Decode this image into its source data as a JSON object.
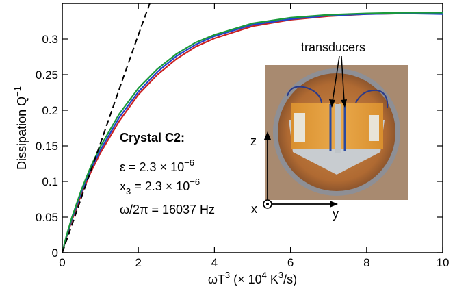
{
  "chart_data": {
    "type": "line",
    "xlabel_base": "ωT",
    "xlabel_sup": "3",
    "xlabel_unit_pre": " (× 10",
    "xlabel_unit_sup1": "4",
    "xlabel_unit_mid": " K",
    "xlabel_unit_sup2": "3",
    "xlabel_unit_post": "/s)",
    "ylabel_base": "Dissipation Q",
    "ylabel_sup": "−1",
    "xlim": [
      0,
      10
    ],
    "ylim": [
      0,
      0.35
    ],
    "grid": false,
    "x_ticks": [
      "0",
      "2",
      "4",
      "6",
      "8",
      "10"
    ],
    "y_ticks": [
      "0",
      "0.05",
      "0.1",
      "0.15",
      "0.2",
      "0.25",
      "0.3"
    ],
    "series": [
      {
        "color": "#cc2222",
        "style": "solid",
        "x": [
          0,
          0.1,
          0.25,
          0.5,
          0.75,
          1,
          1.5,
          2,
          2.5,
          3,
          3.5,
          4,
          5,
          6,
          7,
          8,
          9,
          10
        ],
        "y": [
          0,
          0.02,
          0.045,
          0.082,
          0.113,
          0.14,
          0.185,
          0.222,
          0.25,
          0.272,
          0.289,
          0.301,
          0.318,
          0.327,
          0.332,
          0.335,
          0.336,
          0.336
        ]
      },
      {
        "color": "#2244cc",
        "style": "solid",
        "x": [
          0,
          0.1,
          0.25,
          0.5,
          0.75,
          1,
          1.5,
          2,
          2.5,
          3,
          3.5,
          4,
          5,
          6,
          7,
          8,
          9,
          10
        ],
        "y": [
          0,
          0.021,
          0.047,
          0.085,
          0.117,
          0.144,
          0.19,
          0.226,
          0.254,
          0.276,
          0.292,
          0.304,
          0.32,
          0.328,
          0.333,
          0.335,
          0.336,
          0.335
        ]
      },
      {
        "color": "#1a9a3a",
        "style": "solid",
        "x": [
          0,
          0.1,
          0.25,
          0.5,
          0.75,
          1,
          1.5,
          2,
          2.5,
          3,
          3.5,
          4,
          5,
          6,
          7,
          8,
          9,
          10
        ],
        "y": [
          0,
          0.022,
          0.049,
          0.088,
          0.121,
          0.149,
          0.195,
          0.231,
          0.258,
          0.279,
          0.295,
          0.306,
          0.322,
          0.33,
          0.334,
          0.336,
          0.337,
          0.337
        ]
      },
      {
        "color": "#000000",
        "style": "dashed",
        "x": [
          0,
          0.5,
          1,
          1.5,
          2,
          2.3
        ],
        "y": [
          0,
          0.077,
          0.153,
          0.23,
          0.306,
          0.35
        ]
      }
    ],
    "annotation": {
      "title": "Crystal C2:",
      "line1_pre": "ε = 2.3 × 10",
      "line1_sup": "−6",
      "line2_var": "x",
      "line2_sub": "3",
      "line2_pre": " = 2.3 × 10",
      "line2_sup": "−6",
      "line3": "ω/2π = 16037 Hz"
    },
    "inset": {
      "label": "transducers",
      "axis_z": "z",
      "axis_y": "y",
      "axis_x": "x"
    }
  }
}
